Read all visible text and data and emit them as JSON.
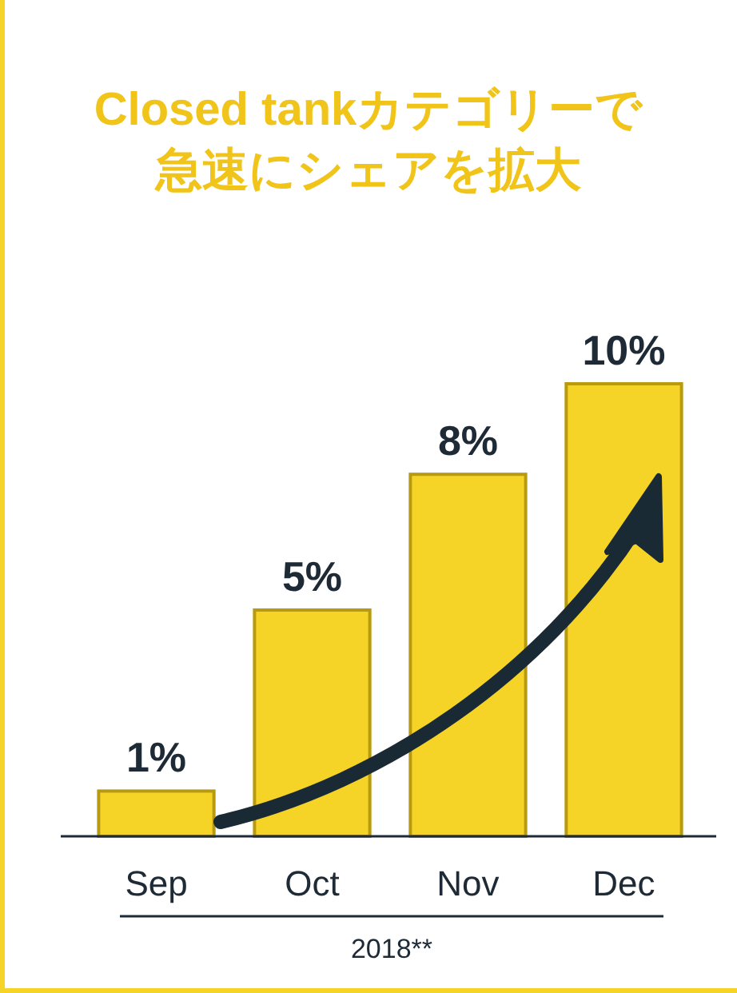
{
  "chart_data": {
    "type": "bar",
    "title": "Closed tankカテゴリーで急速にシェアを拡大",
    "categories": [
      "Sep",
      "Oct",
      "Nov",
      "Dec"
    ],
    "values": [
      1,
      5,
      8,
      10
    ],
    "value_labels": [
      "1%",
      "5%",
      "8%",
      "10%"
    ],
    "color": "#f5d327",
    "xlabel": "2018**"
  }
}
